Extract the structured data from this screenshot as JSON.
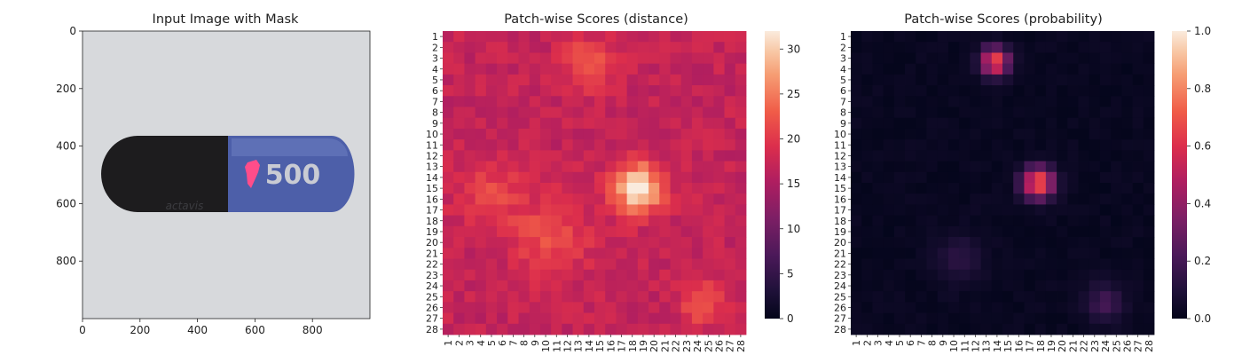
{
  "chart_data": [
    {
      "type": "image",
      "title": "Input Image with Mask",
      "xlim": [
        0,
        1000
      ],
      "ylim": [
        1000,
        0
      ],
      "xticks": [
        0,
        200,
        400,
        600,
        800
      ],
      "yticks": [
        0,
        200,
        400,
        600,
        800
      ],
      "capsule_imprint": "500",
      "capsule_brand": "actavis",
      "colors": {
        "background": "#d7d9dc",
        "left_half": "#1d1c1e",
        "right_half": "#4d5fa9",
        "mask": "#ff4d8a"
      }
    },
    {
      "type": "heatmap",
      "title": "Patch-wise Scores (distance)",
      "rows": [
        "1",
        "2",
        "3",
        "4",
        "5",
        "6",
        "7",
        "8",
        "9",
        "10",
        "11",
        "12",
        "13",
        "14",
        "15",
        "16",
        "17",
        "18",
        "19",
        "20",
        "21",
        "22",
        "23",
        "24",
        "25",
        "26",
        "27",
        "28"
      ],
      "cols": [
        "1",
        "2",
        "3",
        "4",
        "5",
        "6",
        "7",
        "8",
        "9",
        "10",
        "11",
        "12",
        "13",
        "14",
        "15",
        "16",
        "17",
        "18",
        "19",
        "20",
        "21",
        "22",
        "23",
        "24",
        "25",
        "26",
        "27",
        "28"
      ],
      "vmin": 0,
      "vmax": 32,
      "colorbar_ticks": [
        0,
        5,
        10,
        15,
        20,
        25,
        30
      ],
      "colormap": "rocket",
      "base_value": 17,
      "hotspots": [
        {
          "row": 3.5,
          "col": 14,
          "sigma": 1.6,
          "amp": 6
        },
        {
          "row": 15,
          "col": 18.5,
          "sigma": 1.6,
          "amp": 15
        },
        {
          "row": 15.5,
          "col": 5,
          "sigma": 2.2,
          "amp": 4
        },
        {
          "row": 19.5,
          "col": 10.5,
          "sigma": 2.4,
          "amp": 5
        },
        {
          "row": 25.5,
          "col": 24.5,
          "sigma": 1.4,
          "amp": 6
        }
      ]
    },
    {
      "type": "heatmap",
      "title": "Patch-wise Scores (probability)",
      "rows": [
        "1",
        "2",
        "3",
        "4",
        "5",
        "6",
        "7",
        "8",
        "9",
        "10",
        "11",
        "12",
        "13",
        "14",
        "15",
        "16",
        "17",
        "18",
        "19",
        "20",
        "21",
        "22",
        "23",
        "24",
        "25",
        "26",
        "27",
        "28"
      ],
      "cols": [
        "1",
        "2",
        "3",
        "4",
        "5",
        "6",
        "7",
        "8",
        "9",
        "10",
        "11",
        "12",
        "13",
        "14",
        "15",
        "16",
        "17",
        "18",
        "19",
        "20",
        "21",
        "22",
        "23",
        "24",
        "25",
        "26",
        "27",
        "28"
      ],
      "vmin": 0,
      "vmax": 1,
      "colorbar_ticks": [
        "0.0",
        "0.2",
        "0.4",
        "0.6",
        "0.8",
        "1.0"
      ],
      "colormap": "rocket",
      "base_value": 0.02,
      "hotspots": [
        {
          "row": 3.3,
          "col": 13.8,
          "sigma": 0.9,
          "amp": 0.68
        },
        {
          "row": 14.5,
          "col": 17.8,
          "sigma": 1.0,
          "amp": 0.72
        },
        {
          "row": 25.5,
          "col": 24,
          "sigma": 1.2,
          "amp": 0.18
        },
        {
          "row": 21.5,
          "col": 10.5,
          "sigma": 1.6,
          "amp": 0.1
        }
      ]
    }
  ]
}
